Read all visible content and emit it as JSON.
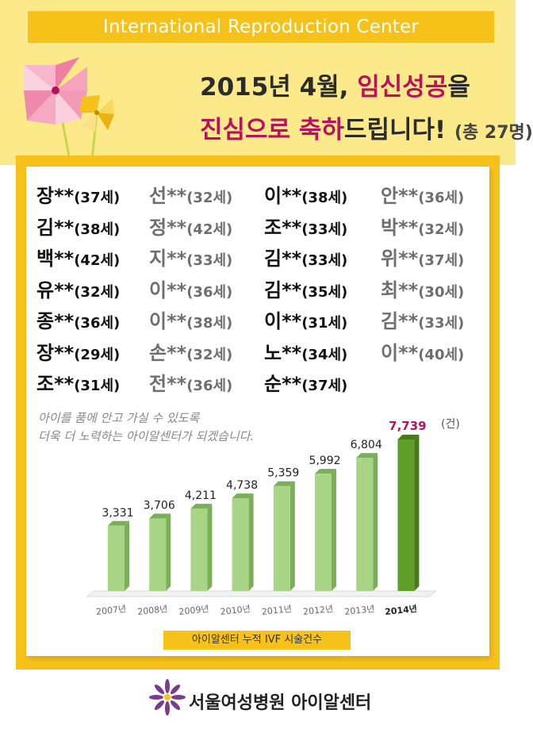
{
  "header": {
    "title": "International Reproduction Center",
    "line1_a": "2015년 4월, ",
    "line1_b": "임신성공",
    "line1_c": "을",
    "line2_a": "진심으로 축하",
    "line2_b": "드립니다!",
    "line2_c": "(총 27명)"
  },
  "patients": [
    {
      "name": "장**",
      "age": "(37세)"
    },
    {
      "name": "선**",
      "age": "(32세)"
    },
    {
      "name": "이**",
      "age": "(38세)"
    },
    {
      "name": "안**",
      "age": "(36세)"
    },
    {
      "name": "김**",
      "age": "(38세)"
    },
    {
      "name": "정**",
      "age": "(42세)"
    },
    {
      "name": "조**",
      "age": "(33세)"
    },
    {
      "name": "박**",
      "age": "(32세)"
    },
    {
      "name": "백**",
      "age": "(42세)"
    },
    {
      "name": "지**",
      "age": "(33세)"
    },
    {
      "name": "김**",
      "age": "(33세)"
    },
    {
      "name": "위**",
      "age": "(37세)"
    },
    {
      "name": "유**",
      "age": "(32세)"
    },
    {
      "name": "이**",
      "age": "(36세)"
    },
    {
      "name": "김**",
      "age": "(35세)"
    },
    {
      "name": "최**",
      "age": "(30세)"
    },
    {
      "name": "종**",
      "age": "(36세)"
    },
    {
      "name": "이**",
      "age": "(38세)"
    },
    {
      "name": "이**",
      "age": "(31세)"
    },
    {
      "name": "김**",
      "age": "(33세)"
    },
    {
      "name": "장**",
      "age": "(29세)"
    },
    {
      "name": "손**",
      "age": "(32세)"
    },
    {
      "name": "노**",
      "age": "(34세)"
    },
    {
      "name": "이**",
      "age": "(40세)"
    },
    {
      "name": "조**",
      "age": "(31세)"
    },
    {
      "name": "전**",
      "age": "(36세)"
    },
    {
      "name": "순**",
      "age": "(37세)"
    }
  ],
  "message": {
    "line1": "아이를 품에 안고 가실 수 있도록",
    "line2": "더욱 더 노력하는 아이알센터가 되겠습니다."
  },
  "chart_data": {
    "type": "bar",
    "categories": [
      "2007년",
      "2008년",
      "2009년",
      "2010년",
      "2011년",
      "2012년",
      "2013년",
      "2014년"
    ],
    "values": [
      3331,
      3706,
      4211,
      4738,
      5359,
      5992,
      6804,
      7739
    ],
    "value_labels": [
      "3,331",
      "3,706",
      "4,211",
      "4,738",
      "5,359",
      "5,992",
      "6,804",
      "7,739"
    ],
    "unit": "(건)",
    "xlabel": "아이알센터 누적 IVF 시술건수",
    "highlight_index": 7,
    "colors": {
      "bar": "#a8d485",
      "bar_dark": "#7aae58",
      "highlight": "#5f9e28",
      "highlight_dark": "#447a18",
      "highlight_label": "#b8125f"
    }
  },
  "footer": {
    "text": "서울여성병원 아이알센터"
  },
  "colors": {
    "yellow": "#f6c21a",
    "cream": "#fbe98a",
    "magenta": "#b8125f",
    "flower": "#7a3b8c"
  }
}
